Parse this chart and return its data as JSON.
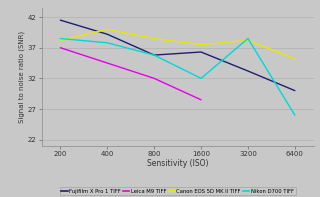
{
  "x_positions": [
    0,
    1,
    2,
    3,
    4,
    5
  ],
  "series": [
    {
      "label": "Fujifilm X Pro 1 TIFF",
      "color": "#1f1f6e",
      "values": [
        41.5,
        39.2,
        35.8,
        36.3,
        33.2,
        30.0
      ]
    },
    {
      "label": "Leica M9 TIFF",
      "color": "#e600e6",
      "values": [
        37.0,
        34.5,
        32.0,
        28.5,
        null,
        null
      ]
    },
    {
      "label": "Canon EOS 5D MK II TIFF",
      "color": "#e8e800",
      "values": [
        38.2,
        40.0,
        38.5,
        37.5,
        38.2,
        35.2
      ]
    },
    {
      "label": "Nikon D700 TIFF",
      "color": "#00d8d8",
      "values": [
        38.5,
        37.8,
        35.8,
        32.0,
        38.5,
        26.0
      ]
    }
  ],
  "xlabel": "Sensitivity (ISO)",
  "ylabel": "Signal to noise ratio (SNR)",
  "yticks": [
    22,
    27,
    32,
    37,
    42
  ],
  "xtick_labels": [
    "200",
    "400",
    "800",
    "1600",
    "3200",
    "6400"
  ],
  "ylim": [
    21.0,
    43.5
  ],
  "xlim": [
    -0.4,
    5.4
  ],
  "background_color": "#c8c8c8",
  "grid_color": "#b0b0b0",
  "legend_bg": "#c8c8c8",
  "legend_edge": "#999999"
}
